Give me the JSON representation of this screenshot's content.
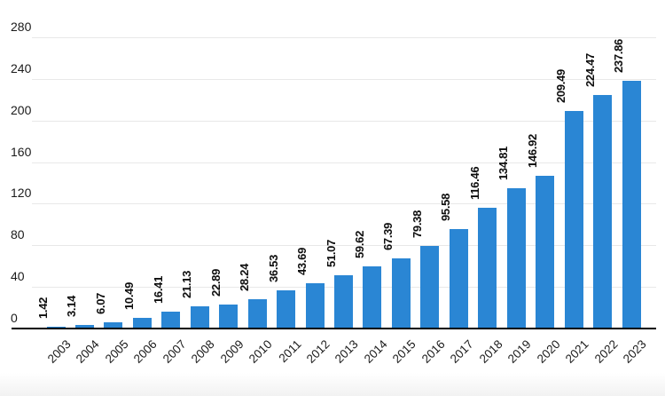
{
  "chart_data": {
    "type": "bar",
    "title": "",
    "xlabel": "",
    "ylabel": "",
    "categories": [
      "2003",
      "2004",
      "2005",
      "2006",
      "2007",
      "2008",
      "2009",
      "2010",
      "2011",
      "2012",
      "2013",
      "2014",
      "2015",
      "2016",
      "2017",
      "2018",
      "2019",
      "2020",
      "2021",
      "2022",
      "2023"
    ],
    "values": [
      1.42,
      3.14,
      6.07,
      10.49,
      16.41,
      21.13,
      22.89,
      28.24,
      36.53,
      43.69,
      51.07,
      59.62,
      67.39,
      79.38,
      95.58,
      116.46,
      134.81,
      146.92,
      209.49,
      224.47,
      237.86
    ],
    "value_labels": [
      "1.42",
      "3.14",
      "6.07",
      "10.49",
      "16.41",
      "21.13",
      "22.89",
      "28.24",
      "36.53",
      "43.69",
      "51.07",
      "59.62",
      "67.39",
      "79.38",
      "95.58",
      "116.46",
      "134.81",
      "146.92",
      "209.49",
      "224.47",
      "237.86"
    ],
    "y_ticks": [
      0,
      40,
      80,
      120,
      160,
      200,
      240,
      280
    ],
    "ylim": [
      0,
      280
    ],
    "grid": true,
    "legend_position": "none",
    "bar_color": "#2a86d4",
    "grid_color": "#e8e8e8",
    "axis_color": "#000000",
    "text_color": "#1a1a1a"
  }
}
